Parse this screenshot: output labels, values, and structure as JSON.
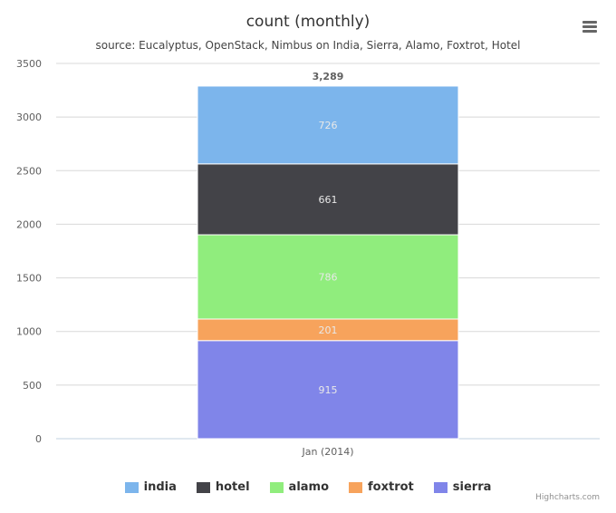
{
  "title": "count (monthly)",
  "subtitle": "source: Eucalyptus, OpenStack, Nimbus on India, Sierra, Alamo, Foxtrot, Hotel",
  "credits": "Highcharts.com",
  "menu_icon": "hamburger-menu-icon",
  "chart_data": {
    "type": "bar",
    "stacked": true,
    "categories": [
      "Jan (2014)"
    ],
    "ylim": [
      0,
      3500
    ],
    "yticks": [
      0,
      500,
      1000,
      1500,
      2000,
      2500,
      3000,
      3500
    ],
    "ytick_labels": [
      "0",
      "500",
      "1000",
      "1500",
      "2000",
      "2500",
      "3000",
      "3500"
    ],
    "grid": true,
    "legend_position": "bottom-center",
    "total_labels": [
      "3,289"
    ],
    "series": [
      {
        "name": "india",
        "values": [
          726
        ],
        "color": "#7cb5ec"
      },
      {
        "name": "hotel",
        "values": [
          661
        ],
        "color": "#434348"
      },
      {
        "name": "alamo",
        "values": [
          786
        ],
        "color": "#90ed7d"
      },
      {
        "name": "foxtrot",
        "values": [
          201
        ],
        "color": "#f7a35c"
      },
      {
        "name": "sierra",
        "values": [
          915
        ],
        "color": "#8085e9"
      }
    ]
  }
}
